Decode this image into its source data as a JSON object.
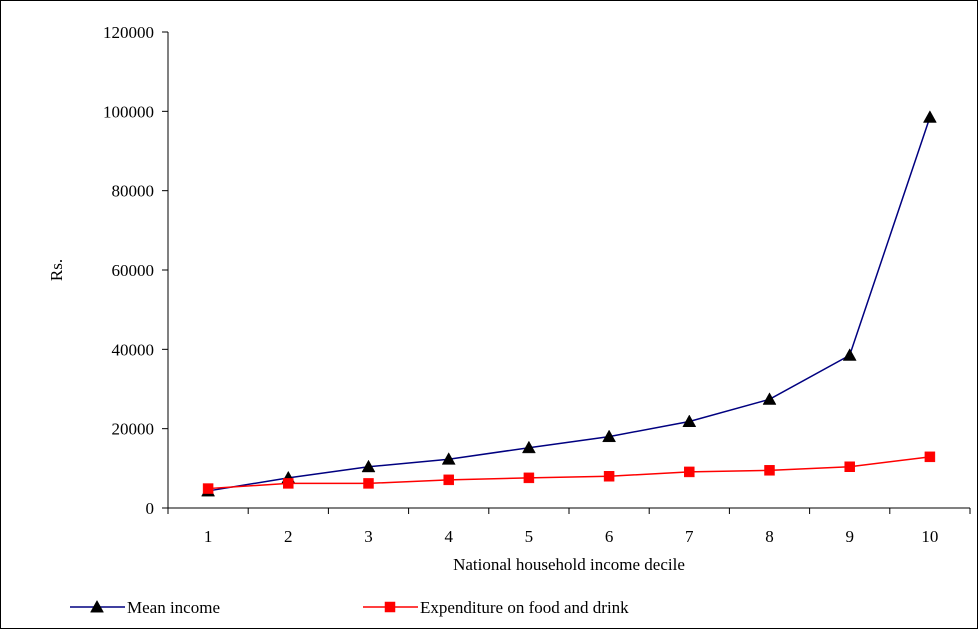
{
  "chart_data": {
    "type": "line",
    "title": "",
    "xlabel": "National household income decile",
    "ylabel": "Rs.",
    "categories": [
      "1",
      "2",
      "3",
      "4",
      "5",
      "6",
      "7",
      "8",
      "9",
      "10"
    ],
    "ylim": [
      0,
      120000
    ],
    "yticks": [
      "0",
      "20000",
      "40000",
      "60000",
      "80000",
      "100000",
      "120000"
    ],
    "grid": false,
    "legend_position": "bottom",
    "series": [
      {
        "name": "Mean income",
        "color": "#000080",
        "marker": "triangle",
        "marker_color": "#000000",
        "values": [
          4300,
          7600,
          10400,
          12300,
          15200,
          18000,
          21800,
          27400,
          38500,
          98500
        ]
      },
      {
        "name": "Expenditure on food and drink",
        "color": "#ff0000",
        "marker": "square",
        "marker_color": "#ff0000",
        "values": [
          4900,
          6200,
          6200,
          7100,
          7600,
          8000,
          9100,
          9500,
          10400,
          12900
        ]
      }
    ]
  }
}
